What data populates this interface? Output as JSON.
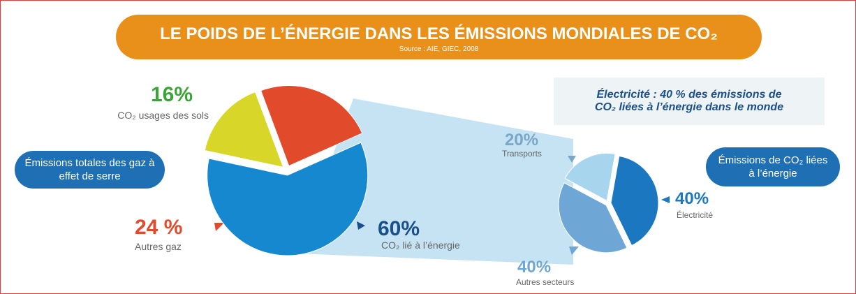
{
  "header": {
    "title": "LE POIDS DE L’ÉNERGIE DANS LES ÉMISSIONS MONDIALES DE CO₂",
    "subtitle": "Source : AIE, GIEC, 2008",
    "note": "Électricité : 40 % des émissions de CO₂ liées à l’énergie dans le monde"
  },
  "chart_data": [
    {
      "type": "pie",
      "title": "Émissions totales des gaz à effet de serre",
      "categories": [
        "CO₂ usages des sols",
        "Autres gaz",
        "CO₂ lié à l’énergie"
      ],
      "values": [
        16,
        24,
        60
      ],
      "value_labels": [
        "16%",
        "24 %",
        "60%"
      ],
      "colors": [
        "#d9d62a",
        "#e24a2c",
        "#1688cf"
      ]
    },
    {
      "type": "pie",
      "title": "Émissions de CO₂ liées à l’énergie",
      "categories": [
        "Transports",
        "Électricité",
        "Autres secteurs"
      ],
      "values": [
        20,
        40,
        40
      ],
      "value_labels": [
        "20%",
        "40%",
        "40%"
      ],
      "colors": [
        "#a8d5ee",
        "#1b77c0",
        "#6ea7d6"
      ]
    }
  ]
}
